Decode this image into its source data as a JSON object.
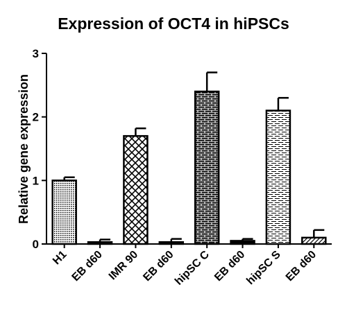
{
  "chart_data": {
    "type": "bar",
    "title": "Expression of OCT4 in hiPSCs",
    "xlabel": "",
    "ylabel": "Relative gene expression",
    "ylim": [
      0,
      3
    ],
    "yticks": [
      0,
      1,
      2,
      3
    ],
    "categories": [
      "H1",
      "EB d60",
      "IMR 90",
      "EB d60",
      "hipSC C",
      "EB d60",
      "hipSC S",
      "EB d60"
    ],
    "values": [
      1.0,
      0.03,
      1.7,
      0.03,
      2.4,
      0.05,
      2.1,
      0.1
    ],
    "errors": [
      0.05,
      0.04,
      0.12,
      0.05,
      0.3,
      0.03,
      0.2,
      0.12
    ],
    "patterns": [
      "dots",
      "solid",
      "crosshatch",
      "solid",
      "bricks",
      "solid",
      "dashes",
      "diagonal"
    ],
    "grid": false,
    "colors": {
      "bar_fill": "#ffffff",
      "pattern": "#000000",
      "stroke": "#000000"
    }
  }
}
